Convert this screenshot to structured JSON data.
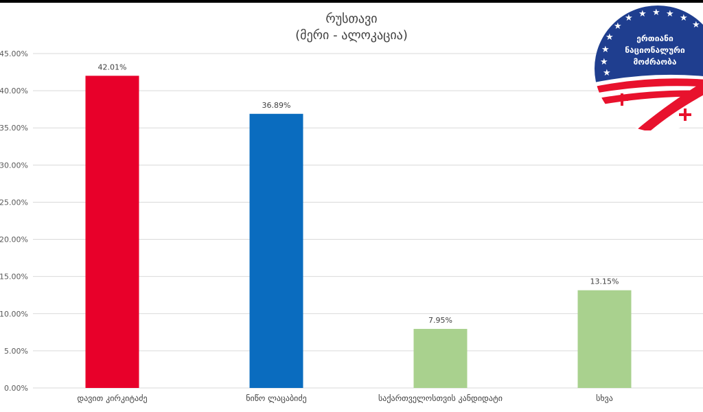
{
  "chart_data": {
    "type": "bar",
    "title": "რუსთავი",
    "subtitle": "(მერი - ალოკაცია)",
    "categories": [
      "დავით კირკიტაძე",
      "ნიწო ლაცაბიძე",
      "საქართველოსთვის კანდიდატი",
      "სხვა"
    ],
    "values": [
      42.01,
      36.89,
      7.95,
      13.15
    ],
    "data_labels": [
      "42.01%",
      "36.89%",
      "7.95%",
      "13.15%"
    ],
    "bar_colors": [
      "#e8002a",
      "#0a6cbf",
      "#a9d18e",
      "#a9d18e"
    ],
    "ylim": [
      0,
      45
    ],
    "yticks": [
      "0.00%",
      "5.00%",
      "10.00%",
      "15.00%",
      "20.00%",
      "25.00%",
      "30.00%",
      "35.00%",
      "40.00%",
      "45.00%"
    ],
    "grid": true,
    "xlabel": "",
    "ylabel": ""
  },
  "logo": {
    "name": "united-national-movement-logo",
    "text_lines": [
      "ერთიანი",
      "ნაციონალური",
      "მოძრაობა"
    ]
  }
}
